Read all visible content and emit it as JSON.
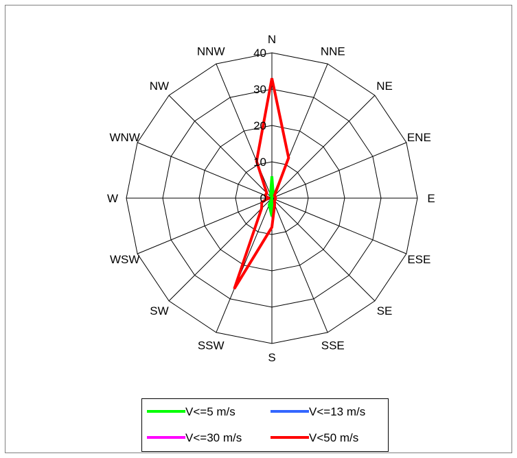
{
  "chart_data": {
    "type": "radar",
    "directions": [
      "N",
      "NNE",
      "NE",
      "ENE",
      "E",
      "ESE",
      "SE",
      "SSE",
      "S",
      "SSW",
      "SW",
      "WSW",
      "W",
      "WNW",
      "NW",
      "NNW"
    ],
    "rings": [
      0,
      10,
      20,
      30,
      40
    ],
    "rmax": 40,
    "series": [
      {
        "name": "V<=5 m/s",
        "color": "#00ff00",
        "values": [
          6,
          1,
          0,
          0,
          0,
          0,
          0,
          0,
          5,
          2,
          0,
          0,
          0,
          0,
          0,
          1
        ]
      },
      {
        "name": "V<=13 m/s",
        "color": "#3366ff",
        "values": [
          0,
          0,
          0,
          0,
          0,
          0,
          0,
          0,
          0,
          0,
          0,
          0,
          0,
          0,
          0,
          0
        ]
      },
      {
        "name": "V<=30 m/s",
        "color": "#ff00ff",
        "values": [
          0,
          0,
          0,
          0,
          0,
          0,
          0,
          0,
          0,
          0,
          0,
          0,
          0,
          0,
          0,
          0
        ]
      },
      {
        "name": "V<50 m/s",
        "color": "#ff0000",
        "values": [
          33,
          12,
          1,
          1,
          1,
          1,
          1,
          2,
          8,
          27,
          4,
          3,
          1,
          2,
          2,
          11
        ]
      }
    ],
    "legend": "bottom"
  }
}
